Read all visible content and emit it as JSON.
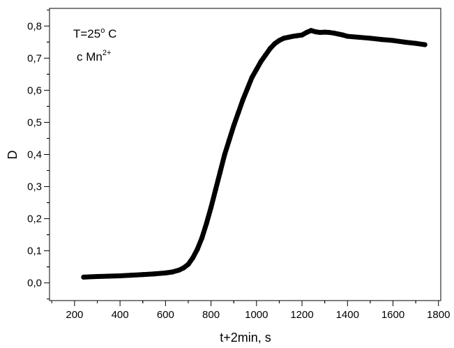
{
  "chart_data": {
    "type": "line",
    "xlabel": "t+2min, s",
    "ylabel": "D",
    "xlim": [
      90,
      1810
    ],
    "ylim": [
      -0.055,
      0.855
    ],
    "x_ticks": [
      200,
      400,
      600,
      800,
      1000,
      1200,
      1400,
      1600,
      1800
    ],
    "x_tick_labels": [
      "200",
      "400",
      "600",
      "800",
      "1000",
      "1200",
      "1400",
      "1600",
      "1800"
    ],
    "y_ticks": [
      0.0,
      0.1,
      0.2,
      0.3,
      0.4,
      0.5,
      0.6,
      0.7,
      0.8
    ],
    "y_tick_labels": [
      "0,0",
      "0,1",
      "0,2",
      "0,3",
      "0,4",
      "0,5",
      "0,6",
      "0,7",
      "0,8"
    ],
    "grid": false,
    "annotations": {
      "temperature": {
        "base": "T=25",
        "sup": "o",
        "suffix": " C"
      },
      "ion": {
        "base": "c Mn",
        "sup": "2+"
      }
    },
    "series": [
      {
        "color": "#000000",
        "x": [
          240,
          300,
          350,
          400,
          450,
          500,
          550,
          600,
          630,
          660,
          680,
          700,
          720,
          740,
          760,
          780,
          800,
          820,
          840,
          860,
          880,
          900,
          920,
          940,
          960,
          980,
          1000,
          1020,
          1040,
          1060,
          1080,
          1100,
          1120,
          1140,
          1160,
          1180,
          1200,
          1220,
          1240,
          1260,
          1280,
          1300,
          1320,
          1340,
          1360,
          1380,
          1400,
          1450,
          1500,
          1550,
          1600,
          1650,
          1700,
          1740
        ],
        "y": [
          0.018,
          0.02,
          0.021,
          0.022,
          0.024,
          0.026,
          0.028,
          0.031,
          0.034,
          0.04,
          0.047,
          0.058,
          0.078,
          0.105,
          0.14,
          0.185,
          0.235,
          0.29,
          0.345,
          0.4,
          0.445,
          0.49,
          0.53,
          0.57,
          0.605,
          0.64,
          0.665,
          0.69,
          0.71,
          0.73,
          0.745,
          0.755,
          0.762,
          0.765,
          0.768,
          0.77,
          0.772,
          0.78,
          0.786,
          0.782,
          0.78,
          0.781,
          0.78,
          0.778,
          0.775,
          0.772,
          0.768,
          0.765,
          0.762,
          0.758,
          0.755,
          0.75,
          0.746,
          0.742
        ]
      }
    ]
  }
}
